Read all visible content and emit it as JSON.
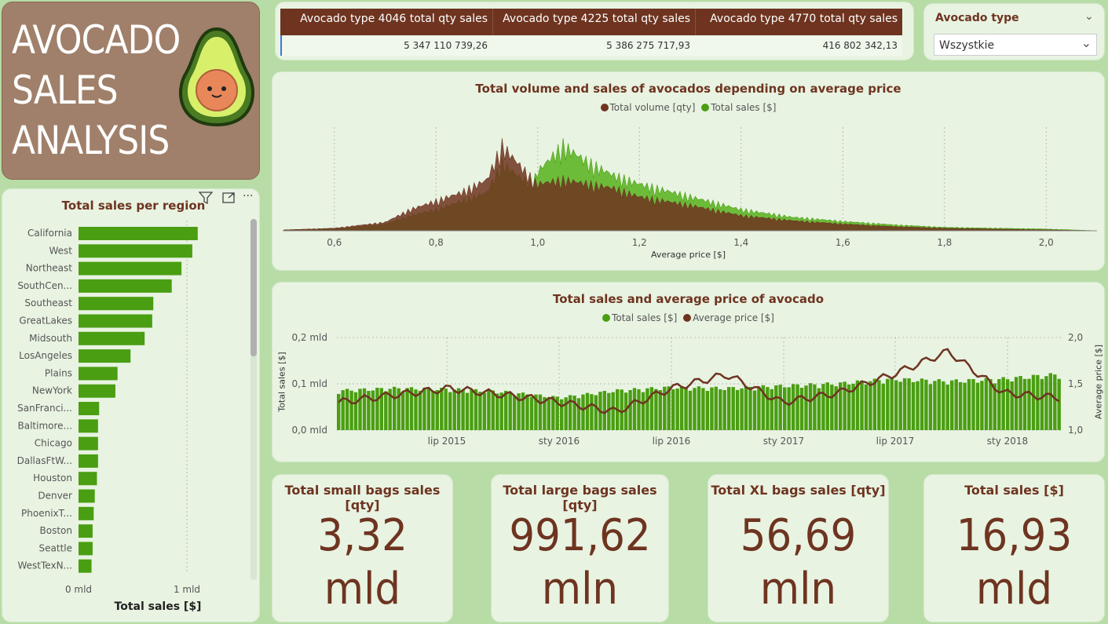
{
  "header": {
    "title_lines": [
      "AVOCADO",
      "SALES",
      "ANALYSIS"
    ]
  },
  "table": {
    "columns": [
      {
        "header": "Avocado type 4046 total qty sales",
        "value": "5 347 110 739,26"
      },
      {
        "header": "Avocado type 4225 total qty sales",
        "value": "5 386 275 717,93"
      },
      {
        "header": "Avocado type 4770 total qty sales",
        "value": "416 802 342,13"
      }
    ]
  },
  "filter": {
    "label": "Avocado type",
    "selected": "Wszystkie"
  },
  "region_chart": {
    "title": "Total sales per region",
    "xlabel": "Total sales [$]",
    "x_ticks": [
      "0 mld",
      "1 mld"
    ]
  },
  "histogram": {
    "title": "Total volume and sales of avocados depending on average price",
    "legend": [
      "Total volume [qty]",
      "Total sales [$]"
    ],
    "xlabel": "Average price [$]",
    "x_ticks": [
      "0,6",
      "0,8",
      "1,0",
      "1,2",
      "1,4",
      "1,6",
      "1,8",
      "2,0"
    ]
  },
  "timeseries": {
    "title": "Total sales and average price of avocado",
    "legend": [
      "Total sales [$]",
      "Average price [$]"
    ],
    "ylabel_left": "Total sales [$]",
    "ylabel_right": "Average price [$]",
    "y_left_ticks": [
      "0,2 mld",
      "0,1 mld",
      "0,0 mld"
    ],
    "y_right_ticks": [
      "2,0",
      "1,5",
      "1,0"
    ],
    "x_ticks": [
      "lip 2015",
      "sty 2016",
      "lip 2016",
      "sty 2017",
      "lip 2017",
      "sty 2018"
    ]
  },
  "kpis": [
    {
      "title": "Total small bags sales [qty]",
      "value_line1": "3,32",
      "value_line2": "mld"
    },
    {
      "title": "Total large bags sales [qty]",
      "value_line1": "991,62",
      "value_line2": "mln"
    },
    {
      "title": "Total XL bags sales [qty]",
      "value_line1": "56,69",
      "value_line2": "mln"
    },
    {
      "title": "Total sales [$]",
      "value_line1": "16,93",
      "value_line2": "mld"
    }
  ],
  "colors": {
    "brown": "#6e3420",
    "green": "#4a9e12",
    "light_green": "#6cbc3a",
    "card": "#e8f3e2",
    "background": "#b8dca6"
  },
  "chart_data": [
    {
      "type": "bar",
      "title": "Total sales per region",
      "orientation": "horizontal",
      "xlabel": "Total sales [$]",
      "categories": [
        "California",
        "West",
        "Northeast",
        "SouthCen...",
        "Southeast",
        "GreatLakes",
        "Midsouth",
        "LosAngeles",
        "Plains",
        "NewYork",
        "SanFranci...",
        "Baltimore...",
        "Chicago",
        "DallasFtW...",
        "Houston",
        "Denver",
        "PhoenixT...",
        "Boston",
        "Seattle",
        "WestTexN..."
      ],
      "values": [
        1.1,
        1.05,
        0.95,
        0.86,
        0.69,
        0.68,
        0.61,
        0.48,
        0.36,
        0.34,
        0.19,
        0.18,
        0.18,
        0.18,
        0.17,
        0.15,
        0.14,
        0.13,
        0.13,
        0.12
      ],
      "unit": "mld",
      "xlim": [
        0,
        1.2
      ]
    },
    {
      "type": "area",
      "title": "Total volume and sales of avocados depending on average price",
      "xlabel": "Average price [$]",
      "xlim": [
        0.5,
        2.1
      ],
      "series": [
        {
          "name": "Total volume [qty]",
          "x": [
            0.5,
            0.6,
            0.7,
            0.75,
            0.8,
            0.85,
            0.9,
            0.93,
            0.96,
            0.99,
            1.0,
            1.05,
            1.1,
            1.15,
            1.2,
            1.3,
            1.4,
            1.5,
            1.6,
            1.7,
            1.8,
            1.9,
            2.0,
            2.1
          ],
          "values": [
            0.01,
            0.03,
            0.1,
            0.25,
            0.35,
            0.45,
            0.6,
            1.0,
            0.8,
            0.6,
            0.55,
            0.6,
            0.55,
            0.5,
            0.4,
            0.3,
            0.18,
            0.12,
            0.08,
            0.05,
            0.03,
            0.02,
            0.01,
            0.0
          ]
        },
        {
          "name": "Total sales [$]",
          "x": [
            0.5,
            0.6,
            0.7,
            0.75,
            0.8,
            0.85,
            0.9,
            0.93,
            0.96,
            0.99,
            1.0,
            1.05,
            1.1,
            1.15,
            1.2,
            1.3,
            1.4,
            1.5,
            1.6,
            1.7,
            1.8,
            1.9,
            2.0,
            2.1
          ],
          "values": [
            0.01,
            0.02,
            0.08,
            0.18,
            0.25,
            0.35,
            0.45,
            0.8,
            0.65,
            0.55,
            0.7,
            1.0,
            0.8,
            0.65,
            0.55,
            0.4,
            0.25,
            0.16,
            0.11,
            0.07,
            0.04,
            0.03,
            0.02,
            0.0
          ]
        }
      ]
    },
    {
      "type": "bar",
      "title": "Total sales and average price of avocado",
      "x": [
        "2015-01",
        "2015-04",
        "2015-07",
        "2015-10",
        "2016-01",
        "2016-04",
        "2016-07",
        "2016-10",
        "2017-01",
        "2017-04",
        "2017-07",
        "2017-10",
        "2018-01",
        "2018-03"
      ],
      "ylim_left": [
        0,
        0.2
      ],
      "ylim_right": [
        1.0,
        2.0
      ],
      "series": [
        {
          "name": "Total sales [$]",
          "axis": "left",
          "unit": "mld",
          "values": [
            0.085,
            0.09,
            0.088,
            0.082,
            0.07,
            0.085,
            0.092,
            0.09,
            0.095,
            0.1,
            0.11,
            0.105,
            0.11,
            0.12
          ]
        },
        {
          "name": "Average price [$]",
          "axis": "right",
          "values": [
            1.3,
            1.38,
            1.45,
            1.38,
            1.3,
            1.2,
            1.45,
            1.6,
            1.3,
            1.4,
            1.6,
            1.85,
            1.4,
            1.35
          ]
        }
      ]
    }
  ]
}
